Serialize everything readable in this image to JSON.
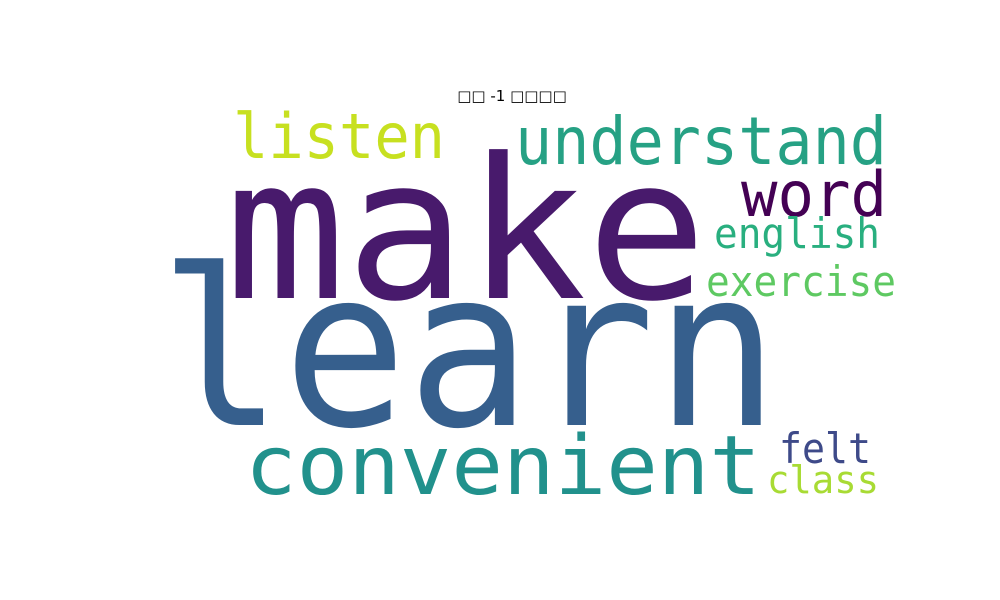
{
  "title": "□□ -1 □□□□",
  "cloud": {
    "words": [
      {
        "text": "learn",
        "color": "#365f8d"
      },
      {
        "text": "make",
        "color": "#481a6c"
      },
      {
        "text": "convenient",
        "color": "#21918c"
      },
      {
        "text": "understand",
        "color": "#26a184"
      },
      {
        "text": "listen",
        "color": "#c7e020"
      },
      {
        "text": "word",
        "color": "#440154"
      },
      {
        "text": "english",
        "color": "#29af7f"
      },
      {
        "text": "exercise",
        "color": "#5ec962"
      },
      {
        "text": "felt",
        "color": "#3e4a89"
      },
      {
        "text": "class",
        "color": "#a8db34"
      }
    ]
  }
}
